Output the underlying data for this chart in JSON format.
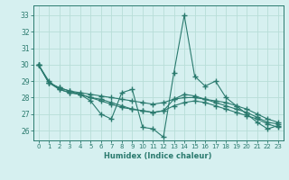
{
  "xlabel": "Humidex (Indice chaleur)",
  "ylabel": "",
  "bg_color": "#d6f0f0",
  "grid_color": "#b8ddd8",
  "line_color": "#2a7a6e",
  "xlim": [
    -0.5,
    23.5
  ],
  "ylim": [
    25.4,
    33.6
  ],
  "yticks": [
    26,
    27,
    28,
    29,
    30,
    31,
    32,
    33
  ],
  "xticks": [
    0,
    1,
    2,
    3,
    4,
    5,
    6,
    7,
    8,
    9,
    10,
    11,
    12,
    13,
    14,
    15,
    16,
    17,
    18,
    19,
    20,
    21,
    22,
    23
  ],
  "series": [
    [
      30.0,
      29.0,
      28.5,
      28.3,
      28.2,
      27.8,
      27.0,
      26.7,
      28.3,
      28.5,
      26.2,
      26.1,
      25.6,
      29.5,
      33.0,
      29.3,
      28.7,
      29.0,
      28.0,
      27.5,
      27.0,
      26.5,
      26.1,
      26.3
    ],
    [
      30.0,
      28.9,
      28.5,
      28.3,
      28.2,
      28.0,
      27.9,
      27.7,
      27.5,
      27.3,
      27.2,
      27.1,
      27.2,
      27.9,
      28.2,
      28.1,
      27.9,
      27.7,
      27.5,
      27.3,
      27.1,
      26.8,
      26.5,
      26.4
    ],
    [
      30.0,
      28.9,
      28.6,
      28.4,
      28.3,
      28.2,
      28.1,
      28.0,
      27.9,
      27.8,
      27.7,
      27.6,
      27.7,
      27.9,
      28.0,
      28.0,
      27.9,
      27.8,
      27.7,
      27.5,
      27.3,
      27.0,
      26.7,
      26.5
    ],
    [
      30.0,
      28.9,
      28.6,
      28.4,
      28.2,
      28.0,
      27.8,
      27.6,
      27.4,
      27.3,
      27.2,
      27.1,
      27.2,
      27.5,
      27.7,
      27.8,
      27.7,
      27.5,
      27.3,
      27.1,
      26.9,
      26.7,
      26.4,
      26.2
    ]
  ]
}
